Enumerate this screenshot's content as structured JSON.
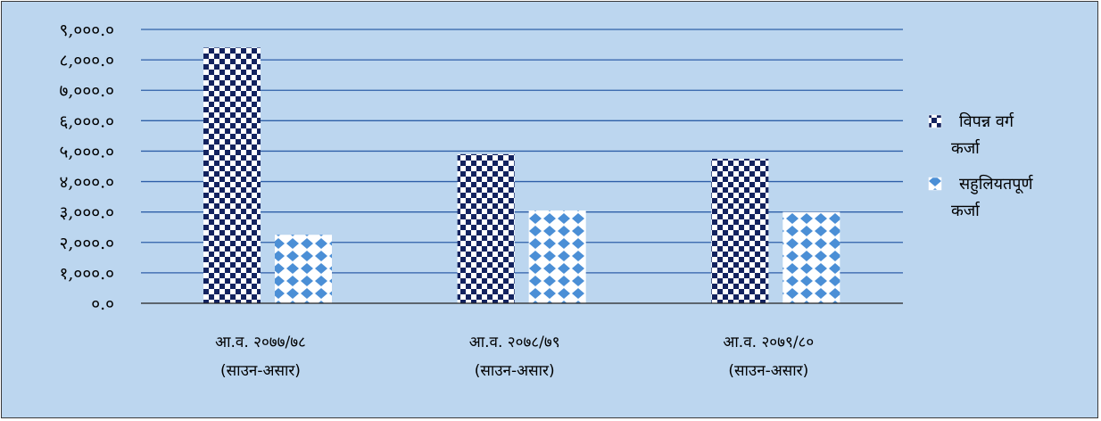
{
  "chart_data": {
    "type": "bar",
    "categories": [
      [
        "आ.व. २०७७/७८",
        "(साउन-असार)"
      ],
      [
        "आ.व. २०७८/७९",
        "(साउन-असार)"
      ],
      [
        "आ.व. २०७९/८०",
        "(साउन-असार)"
      ]
    ],
    "series": [
      {
        "name": [
          "विपन्न वर्ग",
          "कर्जा"
        ],
        "values": [
          8400,
          4900,
          4750
        ],
        "color": "#13235f",
        "pattern": "checker"
      },
      {
        "name": [
          "सहुलियतपूर्ण",
          "कर्जा"
        ],
        "values": [
          2250,
          3050,
          3000
        ],
        "color": "#4b8fd6",
        "pattern": "diamond"
      }
    ],
    "ylim": [
      0,
      9000
    ],
    "yticks": [
      {
        "value": 0,
        "label": "०.०"
      },
      {
        "value": 1000,
        "label": "१,०००.०"
      },
      {
        "value": 2000,
        "label": "२,०००.०"
      },
      {
        "value": 3000,
        "label": "३,०००.०"
      },
      {
        "value": 4000,
        "label": "४,०००.०"
      },
      {
        "value": 5000,
        "label": "५,०००.०"
      },
      {
        "value": 6000,
        "label": "६,०००.०"
      },
      {
        "value": 7000,
        "label": "७,०००.०"
      },
      {
        "value": 8000,
        "label": "८,०००.०"
      },
      {
        "value": 9000,
        "label": "९,०००.०"
      }
    ],
    "grid": true,
    "legend_position": "right",
    "colors": {
      "background": "#bcd6ef",
      "gridline": "#2e5fa8",
      "axis": "#222222"
    }
  }
}
